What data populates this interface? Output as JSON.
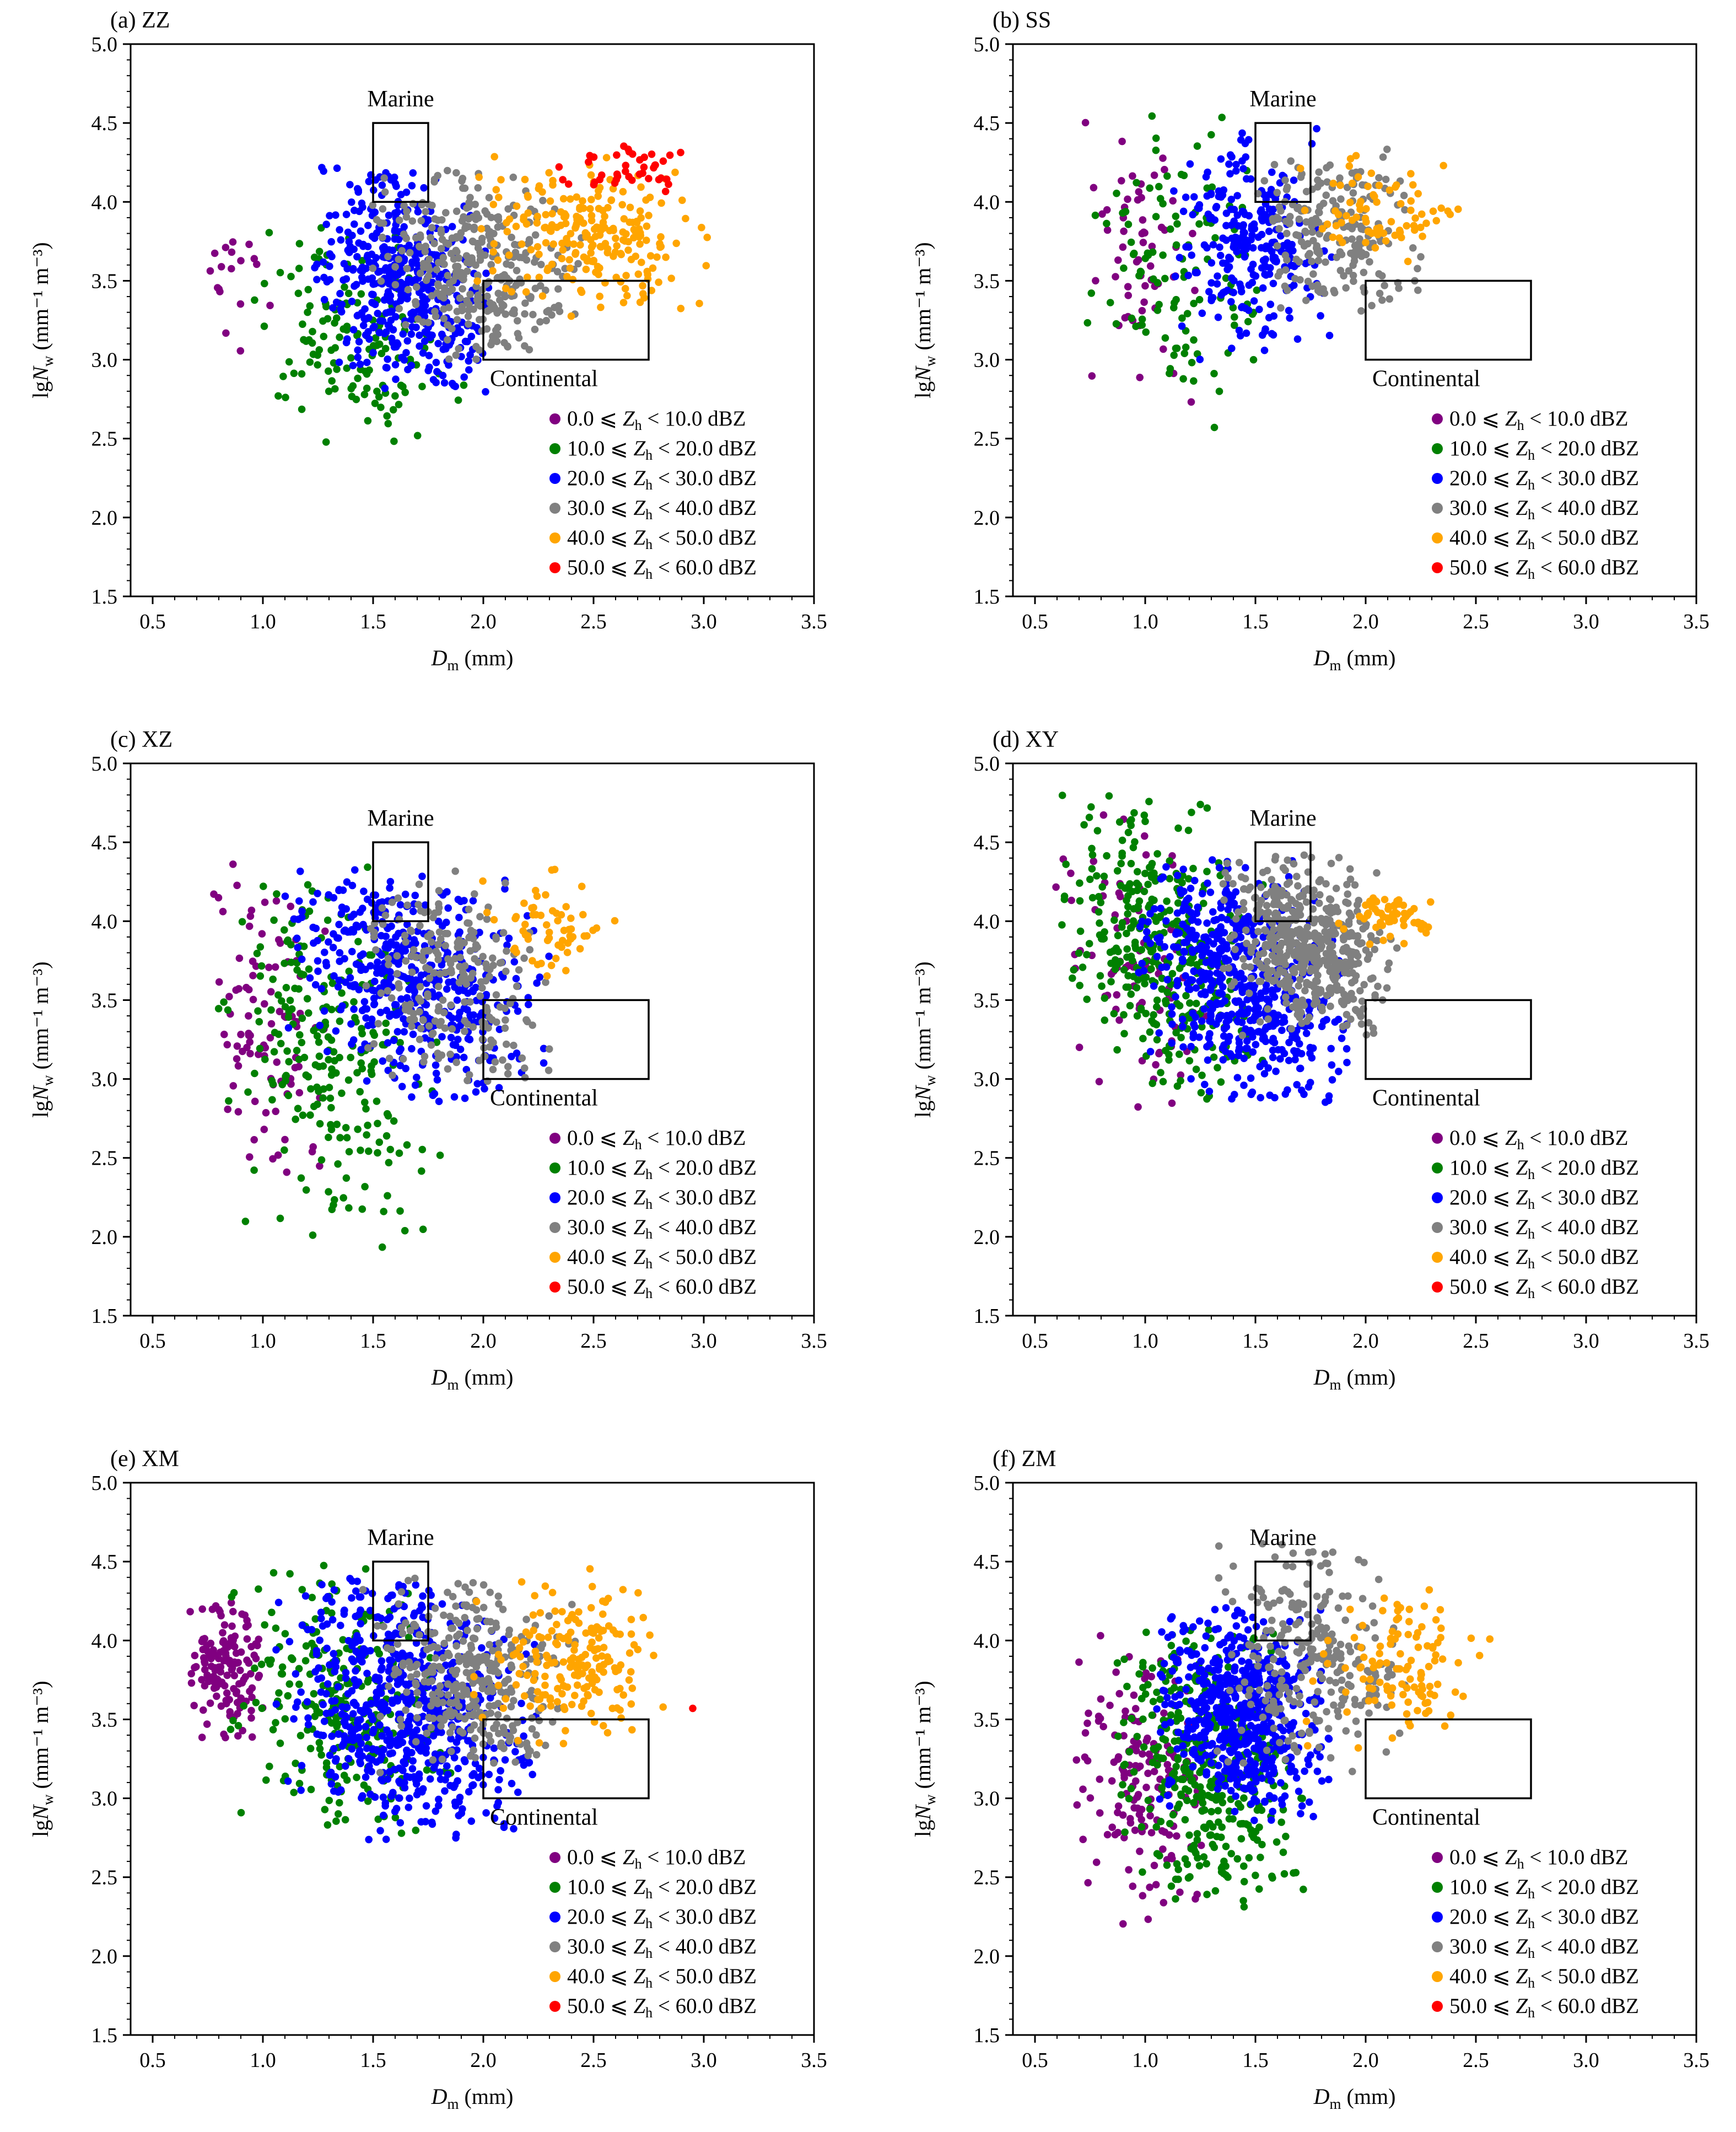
{
  "figure": {
    "x_label": {
      "symbol": "D",
      "subscript": "m",
      "unit": " (mm)"
    },
    "y_label": {
      "prefix": "lg",
      "symbol": "N",
      "subscript": "w",
      "unit": " (mm⁻¹ m⁻³)"
    }
  },
  "legend": [
    {
      "lower": "0.0",
      "upper": "10.0",
      "color": "#800080"
    },
    {
      "lower": "10.0",
      "upper": "20.0",
      "color": "#008000"
    },
    {
      "lower": "20.0",
      "upper": "30.0",
      "color": "#0000ff"
    },
    {
      "lower": "30.0",
      "upper": "40.0",
      "color": "#808080"
    },
    {
      "lower": "40.0",
      "upper": "50.0",
      "color": "#ffa500"
    },
    {
      "lower": "50.0",
      "upper": "60.0",
      "color": "#ff0000"
    }
  ],
  "legend_text": {
    "leq": " ⩽ ",
    "symbol": "Z",
    "subscript": "h",
    "lt": " < ",
    "unit": " dBZ"
  },
  "regions": [
    {
      "label": "Marine",
      "x": [
        1.5,
        1.75
      ],
      "y": [
        4.0,
        4.5
      ]
    },
    {
      "label": "Continental",
      "x": [
        2.0,
        2.75
      ],
      "y": [
        3.0,
        3.5
      ]
    }
  ],
  "chart_data": [
    {
      "type": "scatter",
      "panel": "(a) ZZ",
      "xlim": [
        0.4,
        3.5
      ],
      "ylim": [
        1.5,
        5.0
      ],
      "x_ticks": [
        "0.5",
        "1.0",
        "1.5",
        "2.0",
        "2.5",
        "3.0",
        "3.5"
      ],
      "y_ticks": [
        "1.5",
        "2.0",
        "2.5",
        "3.0",
        "3.5",
        "4.0",
        "4.5",
        "5.0"
      ],
      "clusters": [
        {
          "series": 0,
          "n": 18,
          "dm": [
            0.7,
            1.05
          ],
          "lg": [
            3.05,
            3.95
          ],
          "t": 0
        },
        {
          "series": 1,
          "n": 140,
          "dm": [
            0.88,
            1.95
          ],
          "lg": [
            2.45,
            3.85
          ],
          "t": -0.35
        },
        {
          "series": 2,
          "n": 460,
          "dm": [
            1.22,
            2.05
          ],
          "lg": [
            2.78,
            4.22
          ],
          "t": -0.35
        },
        {
          "series": 3,
          "n": 330,
          "dm": [
            1.45,
            2.45
          ],
          "lg": [
            3.0,
            4.2
          ],
          "t": -0.2
        },
        {
          "series": 4,
          "n": 230,
          "dm": [
            1.95,
            3.05
          ],
          "lg": [
            3.25,
            4.3
          ],
          "t": -0.05
        },
        {
          "series": 5,
          "n": 42,
          "dm": [
            2.3,
            2.95
          ],
          "lg": [
            4.0,
            4.37
          ],
          "t": 0
        }
      ]
    },
    {
      "type": "scatter",
      "panel": "(b) SS",
      "xlim": [
        0.4,
        3.5
      ],
      "ylim": [
        1.5,
        5.0
      ],
      "x_ticks": [
        "0.5",
        "1.0",
        "1.5",
        "2.0",
        "2.5",
        "3.0",
        "3.5"
      ],
      "y_ticks": [
        "1.5",
        "2.0",
        "2.5",
        "3.0",
        "3.5",
        "4.0",
        "4.5",
        "5.0"
      ],
      "clusters": [
        {
          "series": 0,
          "n": 60,
          "dm": [
            0.63,
            1.25
          ],
          "lg": [
            2.7,
            4.55
          ],
          "t": -0.3
        },
        {
          "series": 1,
          "n": 110,
          "dm": [
            0.72,
            1.55
          ],
          "lg": [
            2.5,
            4.57
          ],
          "t": -0.3
        },
        {
          "series": 2,
          "n": 260,
          "dm": [
            1.12,
            1.85
          ],
          "lg": [
            3.0,
            4.47
          ],
          "t": -0.2
        },
        {
          "series": 3,
          "n": 210,
          "dm": [
            1.45,
            2.25
          ],
          "lg": [
            3.3,
            4.35
          ],
          "t": -0.15
        },
        {
          "series": 4,
          "n": 75,
          "dm": [
            1.65,
            2.45
          ],
          "lg": [
            3.6,
            4.3
          ],
          "t": -0.1
        }
      ]
    },
    {
      "type": "scatter",
      "panel": "(c) XZ",
      "xlim": [
        0.4,
        3.5
      ],
      "ylim": [
        1.5,
        5.0
      ],
      "x_ticks": [
        "0.5",
        "1.0",
        "1.5",
        "2.0",
        "2.5",
        "3.0",
        "3.5"
      ],
      "y_ticks": [
        "1.5",
        "2.0",
        "2.5",
        "3.0",
        "3.5",
        "4.0",
        "4.5",
        "5.0"
      ],
      "clusters": [
        {
          "series": 0,
          "n": 95,
          "dm": [
            0.72,
            1.3
          ],
          "lg": [
            2.25,
            4.4
          ],
          "t": -0.3
        },
        {
          "series": 1,
          "n": 230,
          "dm": [
            0.78,
            1.82
          ],
          "lg": [
            1.92,
            4.35
          ],
          "t": -0.4
        },
        {
          "series": 2,
          "n": 480,
          "dm": [
            1.1,
            2.3
          ],
          "lg": [
            2.85,
            4.35
          ],
          "t": -0.35
        },
        {
          "series": 3,
          "n": 230,
          "dm": [
            1.45,
            2.3
          ],
          "lg": [
            2.95,
            4.35
          ],
          "t": -0.2
        },
        {
          "series": 4,
          "n": 60,
          "dm": [
            1.95,
            2.6
          ],
          "lg": [
            3.55,
            4.35
          ],
          "t": -0.1
        }
      ]
    },
    {
      "type": "scatter",
      "panel": "(d) XY",
      "xlim": [
        0.4,
        3.5
      ],
      "ylim": [
        1.5,
        5.0
      ],
      "x_ticks": [
        "0.5",
        "1.0",
        "1.5",
        "2.0",
        "2.5",
        "3.0",
        "3.5"
      ],
      "y_ticks": [
        "1.5",
        "2.0",
        "2.5",
        "3.0",
        "3.5",
        "4.0",
        "4.5",
        "5.0"
      ],
      "clusters": [
        {
          "series": 0,
          "n": 80,
          "dm": [
            0.55,
            1.35
          ],
          "lg": [
            2.8,
            4.7
          ],
          "t": -0.45
        },
        {
          "series": 1,
          "n": 340,
          "dm": [
            0.62,
            1.55
          ],
          "lg": [
            2.85,
            4.82
          ],
          "t": -0.45
        },
        {
          "series": 2,
          "n": 560,
          "dm": [
            0.95,
            1.92
          ],
          "lg": [
            2.85,
            4.4
          ],
          "t": -0.4
        },
        {
          "series": 3,
          "n": 500,
          "dm": [
            1.35,
            2.15
          ],
          "lg": [
            3.22,
            4.45
          ],
          "t": -0.3
        },
        {
          "series": 4,
          "n": 60,
          "dm": [
            1.85,
            2.4
          ],
          "lg": [
            3.85,
            4.2
          ],
          "t": -0.1
        }
      ]
    },
    {
      "type": "scatter",
      "panel": "(e) XM",
      "xlim": [
        0.4,
        3.5
      ],
      "ylim": [
        1.5,
        5.0
      ],
      "x_ticks": [
        "0.5",
        "1.0",
        "1.5",
        "2.0",
        "2.5",
        "3.0",
        "3.5"
      ],
      "y_ticks": [
        "1.5",
        "2.0",
        "2.5",
        "3.0",
        "3.5",
        "4.0",
        "4.5",
        "5.0"
      ],
      "clusters": [
        {
          "series": 0,
          "n": 150,
          "dm": [
            0.62,
            1.05
          ],
          "lg": [
            3.35,
            4.27
          ],
          "t": -0.1
        },
        {
          "series": 1,
          "n": 260,
          "dm": [
            0.85,
            1.9
          ],
          "lg": [
            2.7,
            4.48
          ],
          "t": -0.3
        },
        {
          "series": 2,
          "n": 640,
          "dm": [
            1.05,
            2.25
          ],
          "lg": [
            2.72,
            4.4
          ],
          "t": -0.35
        },
        {
          "series": 3,
          "n": 330,
          "dm": [
            1.45,
            2.42
          ],
          "lg": [
            3.15,
            4.4
          ],
          "t": -0.2
        },
        {
          "series": 4,
          "n": 190,
          "dm": [
            1.95,
            2.82
          ],
          "lg": [
            3.28,
            4.47
          ],
          "t": -0.1
        },
        {
          "series": 5,
          "n": 1,
          "dm": [
            2.95,
            2.95
          ],
          "lg": [
            3.57,
            3.57
          ],
          "t": 0
        }
      ]
    },
    {
      "type": "scatter",
      "panel": "(f) ZM",
      "xlim": [
        0.4,
        3.5
      ],
      "ylim": [
        1.5,
        5.0
      ],
      "x_ticks": [
        "0.5",
        "1.0",
        "1.5",
        "2.0",
        "2.5",
        "3.0",
        "3.5"
      ],
      "y_ticks": [
        "1.5",
        "2.0",
        "2.5",
        "3.0",
        "3.5",
        "4.0",
        "4.5",
        "5.0"
      ],
      "clusters": [
        {
          "series": 0,
          "n": 160,
          "dm": [
            0.65,
            1.3
          ],
          "lg": [
            2.2,
            4.05
          ],
          "t": -0.2
        },
        {
          "series": 1,
          "n": 370,
          "dm": [
            0.85,
            1.72
          ],
          "lg": [
            2.28,
            4.1
          ],
          "t": -0.2
        },
        {
          "series": 2,
          "n": 570,
          "dm": [
            1.05,
            1.85
          ],
          "lg": [
            2.85,
            4.22
          ],
          "t": -0.2
        },
        {
          "series": 3,
          "n": 260,
          "dm": [
            1.3,
            2.2
          ],
          "lg": [
            3.1,
            4.62
          ],
          "t": -0.2
        },
        {
          "series": 4,
          "n": 110,
          "dm": [
            1.7,
            2.6
          ],
          "lg": [
            3.3,
            4.35
          ],
          "t": -0.1
        }
      ]
    }
  ]
}
